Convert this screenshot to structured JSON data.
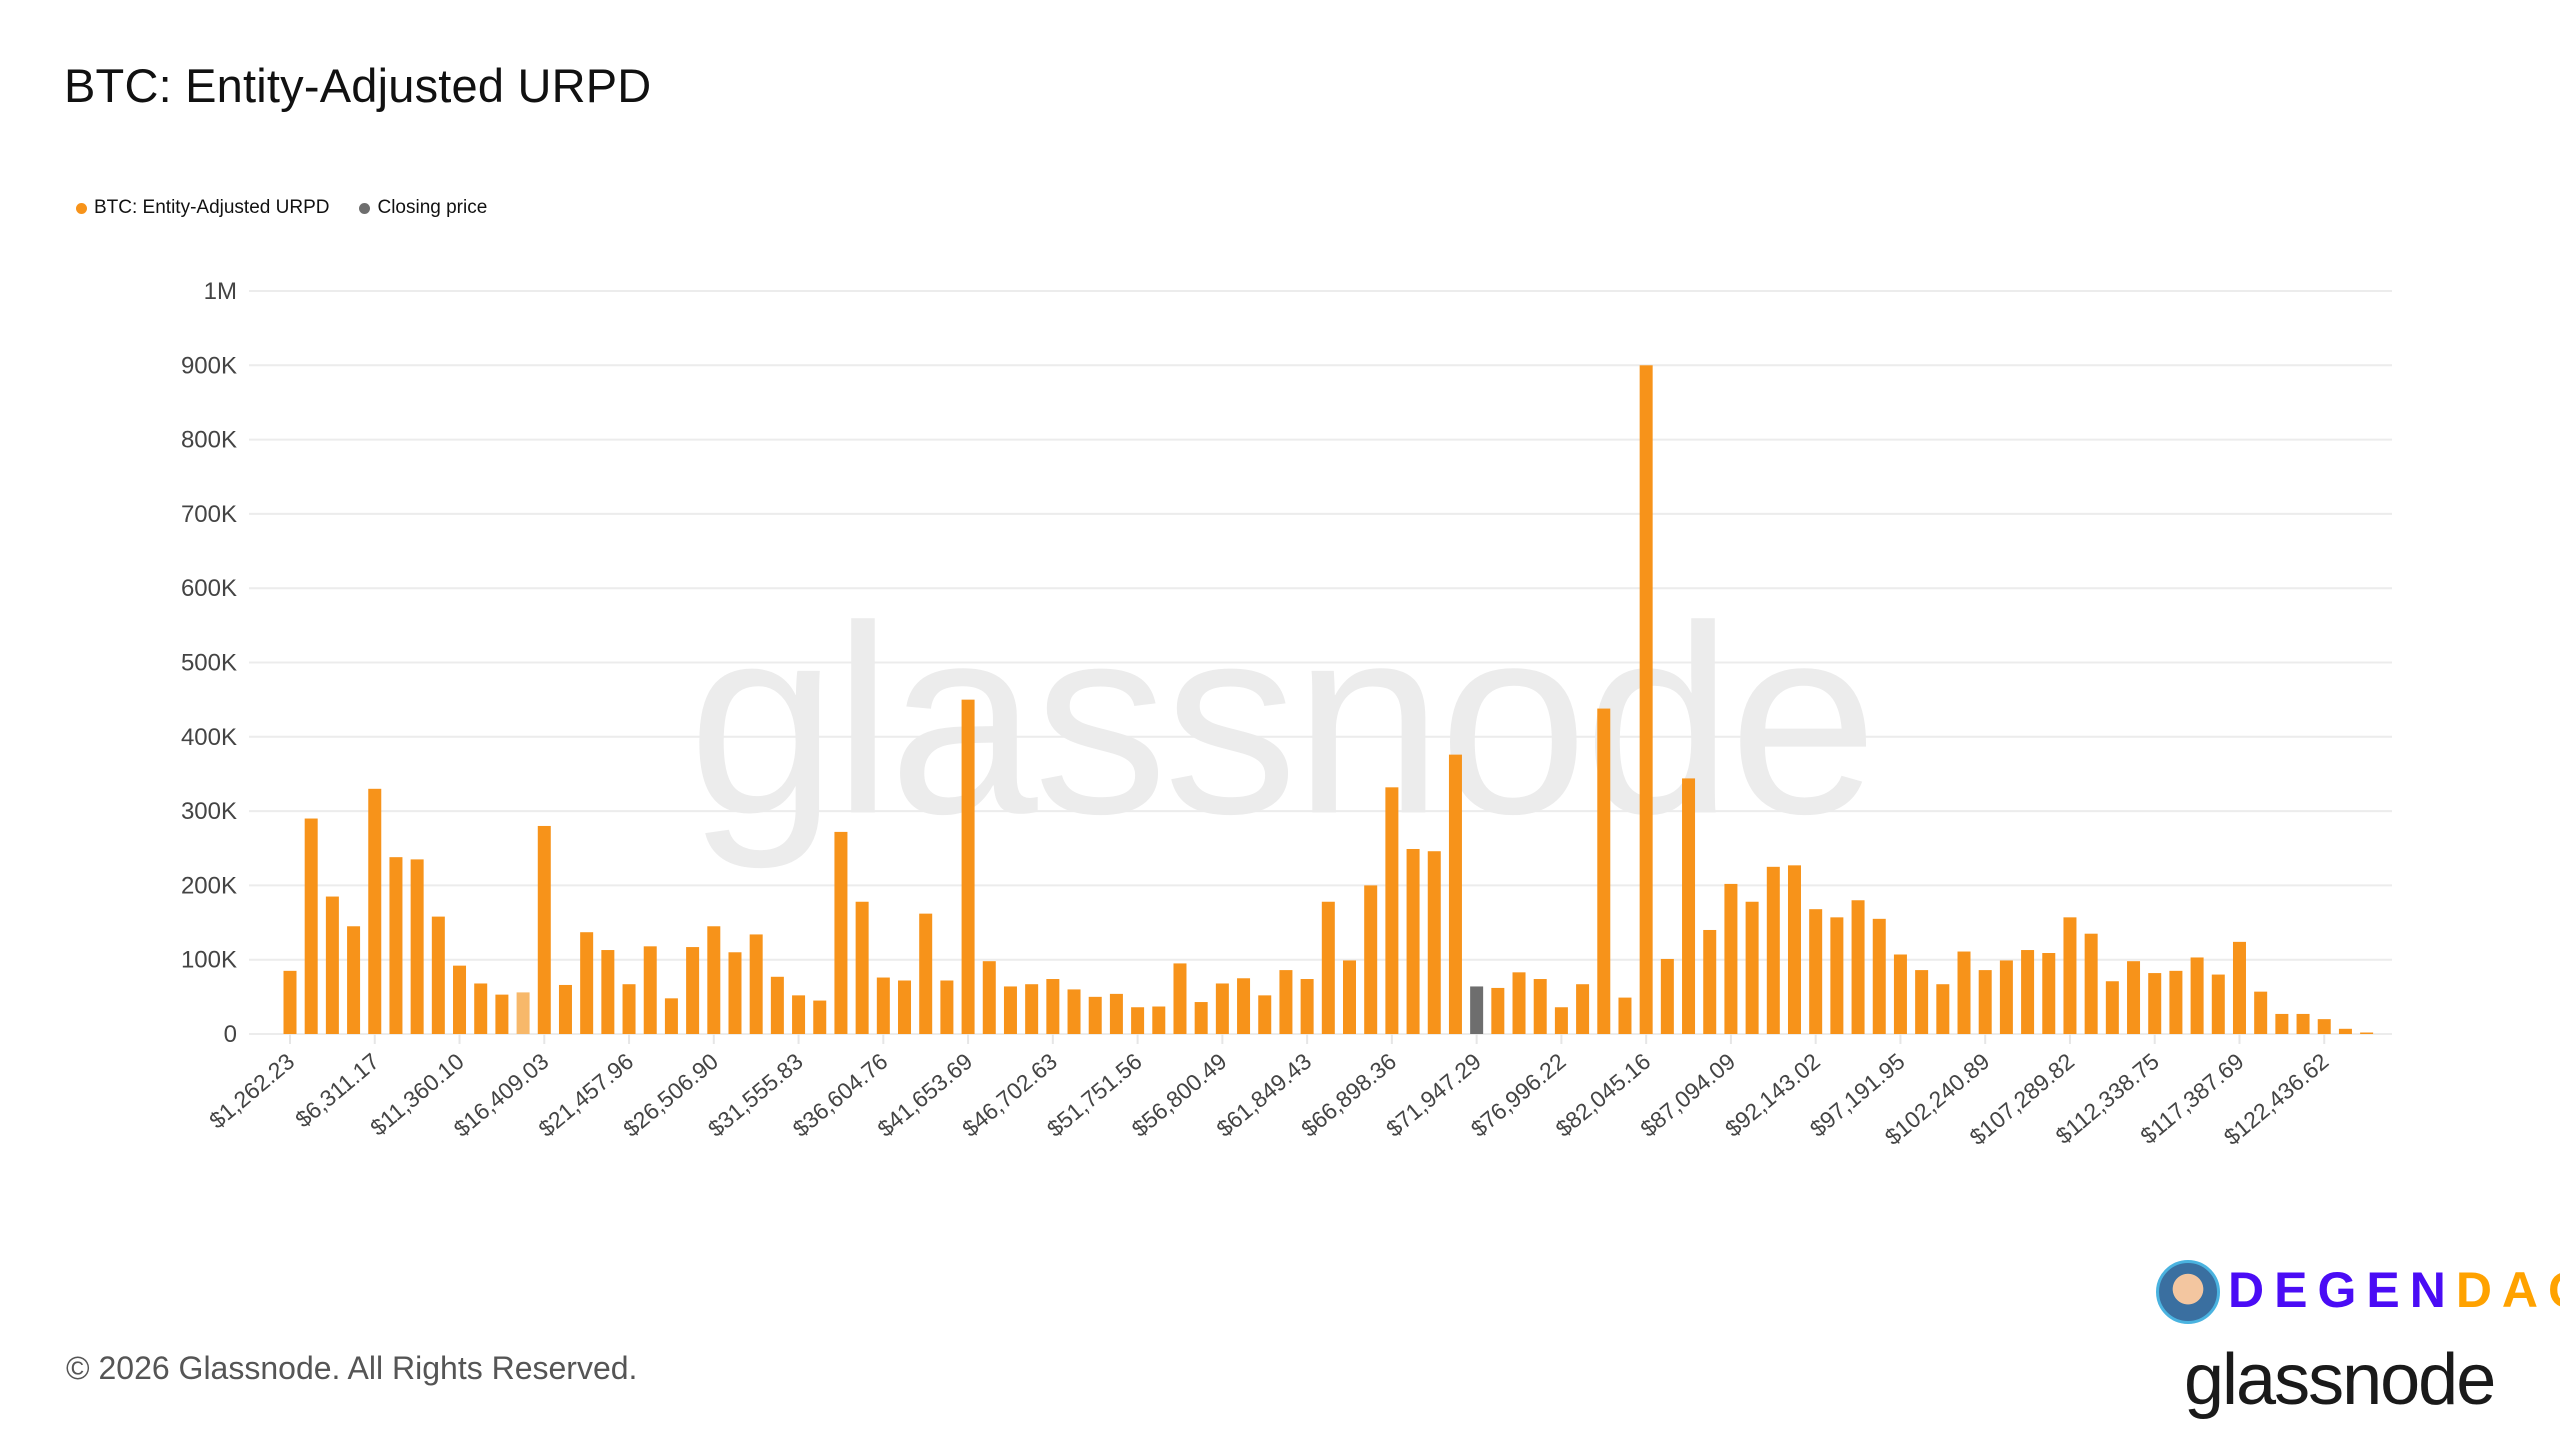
{
  "title": "BTC: Entity-Adjusted URPD",
  "legend": [
    {
      "label": "BTC: Entity-Adjusted URPD",
      "color": "#f7931a"
    },
    {
      "label": "Closing price",
      "color": "#6e6e6e"
    }
  ],
  "watermark": "glassnode",
  "footer": "© 2026 Glassnode. All Rights Reserved.",
  "logo": {
    "brand": "glassnode",
    "overlay_part1": "DEGEN",
    "overlay_part2": "DAO!"
  },
  "chart_data": {
    "type": "bar",
    "title": "BTC: Entity-Adjusted URPD",
    "xlabel": "",
    "ylabel": "",
    "ylim": [
      0,
      1000000
    ],
    "grid": true,
    "legend_placement": "top-left",
    "y_ticks": [
      "0",
      "100K",
      "200K",
      "300K",
      "400K",
      "500K",
      "600K",
      "700K",
      "800K",
      "900K",
      "1M"
    ],
    "x_tick_labels": [
      "$1,262.23",
      "$6,311.17",
      "$11,360.10",
      "$16,409.03",
      "$21,457.96",
      "$26,506.90",
      "$31,555.83",
      "$36,604.76",
      "$41,653.69",
      "$46,702.63",
      "$51,751.56",
      "$56,800.49",
      "$61,849.43",
      "$66,898.36",
      "$71,947.29",
      "$76,996.22",
      "$82,045.16",
      "$87,094.09",
      "$92,143.02",
      "$97,191.95",
      "$102,240.89",
      "$107,289.82",
      "$112,338.75",
      "$117,387.69",
      "$122,436.62"
    ],
    "closing_price_bin": "$71,947.29",
    "colors": {
      "urpd": "#f7931a",
      "urpd_highlight": "#f7b86a",
      "closing": "#6e6e6e"
    },
    "values": [
      85000,
      290000,
      185000,
      145000,
      330000,
      238000,
      235000,
      158000,
      92000,
      68000,
      53000,
      56000,
      280000,
      66000,
      137000,
      113000,
      67000,
      118000,
      48000,
      117000,
      145000,
      110000,
      134000,
      77000,
      52000,
      45000,
      272000,
      178000,
      76000,
      72000,
      162000,
      72000,
      450000,
      98000,
      64000,
      67000,
      74000,
      60000,
      50000,
      54000,
      36000,
      37000,
      95000,
      43000,
      68000,
      75000,
      52000,
      86000,
      74000,
      178000,
      99000,
      200000,
      332000,
      249000,
      246000,
      376000,
      64000,
      62000,
      83000,
      74000,
      36000,
      67000,
      438000,
      49000,
      900000,
      101000,
      344000,
      140000,
      202000,
      178000,
      225000,
      227000,
      168000,
      157000,
      180000,
      155000,
      107000,
      86000,
      67000,
      111000,
      86000,
      99000,
      113000,
      109000,
      157000,
      135000,
      71000,
      98000,
      82000,
      85000,
      103000,
      80000,
      124000,
      57000,
      27000,
      27000,
      20000,
      7000,
      2000
    ]
  }
}
